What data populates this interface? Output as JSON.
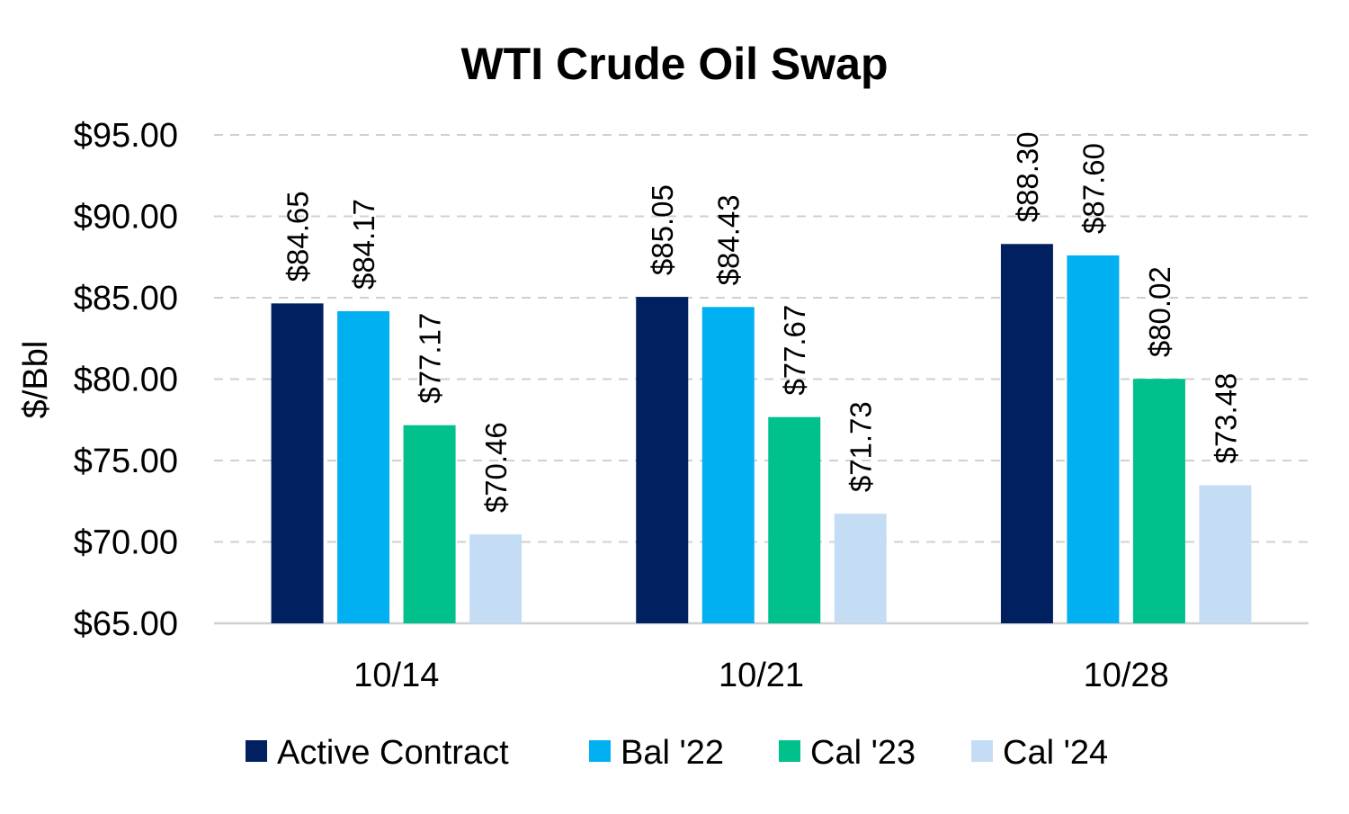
{
  "chart_data": {
    "type": "bar",
    "title": "WTI Crude Oil Swap",
    "xlabel": "",
    "ylabel": "$/Bbl",
    "ylim": [
      65,
      95
    ],
    "ytick_step": 5,
    "ytick_labels": [
      "$65.00",
      "$70.00",
      "$75.00",
      "$80.00",
      "$85.00",
      "$90.00",
      "$95.00"
    ],
    "grid": true,
    "legend_position": "bottom",
    "categories": [
      "10/14",
      "10/21",
      "10/28"
    ],
    "series": [
      {
        "name": "Active Contract",
        "color": "#002060",
        "values": [
          84.65,
          85.05,
          88.3
        ],
        "labels": [
          "$84.65",
          "$85.05",
          "$88.30"
        ]
      },
      {
        "name": "Bal '22",
        "color": "#00B0F0",
        "values": [
          84.17,
          84.43,
          87.6
        ],
        "labels": [
          "$84.17",
          "$84.43",
          "$87.60"
        ]
      },
      {
        "name": "Cal '23",
        "color": "#00C08B",
        "values": [
          77.17,
          77.67,
          80.02
        ],
        "labels": [
          "$77.17",
          "$77.67",
          "$80.02"
        ]
      },
      {
        "name": "Cal '24",
        "color": "#C5DCF5",
        "values": [
          70.46,
          71.73,
          73.48
        ],
        "labels": [
          "$70.46",
          "$71.73",
          "$73.48"
        ]
      }
    ]
  }
}
